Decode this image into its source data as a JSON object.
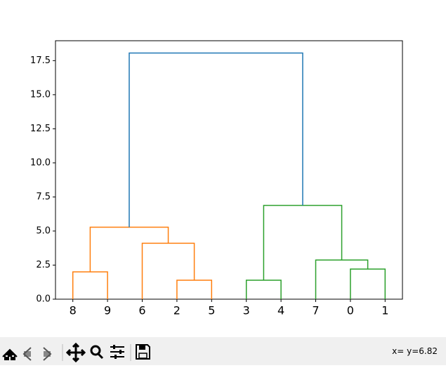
{
  "chart_data": {
    "type": "dendrogram",
    "categories": [
      "8",
      "9",
      "6",
      "2",
      "5",
      "3",
      "4",
      "7",
      "0",
      "1"
    ],
    "links": [
      {
        "x": [
          5,
          5,
          15,
          15
        ],
        "y": [
          0,
          2.0,
          2.0,
          0
        ],
        "color": "#ff7f0e"
      },
      {
        "x": [
          35,
          35,
          45,
          45
        ],
        "y": [
          0,
          1.39,
          1.39,
          0
        ],
        "color": "#ff7f0e"
      },
      {
        "x": [
          25,
          25,
          40,
          40
        ],
        "y": [
          0,
          4.1,
          4.1,
          1.39
        ],
        "color": "#ff7f0e"
      },
      {
        "x": [
          10,
          10,
          32.5,
          32.5
        ],
        "y": [
          2.0,
          5.28,
          5.28,
          4.1
        ],
        "color": "#ff7f0e"
      },
      {
        "x": [
          55,
          55,
          65,
          65
        ],
        "y": [
          0,
          1.39,
          1.39,
          0
        ],
        "color": "#2ca02c"
      },
      {
        "x": [
          85,
          85,
          95,
          95
        ],
        "y": [
          0,
          2.21,
          2.21,
          0
        ],
        "color": "#2ca02c"
      },
      {
        "x": [
          75,
          75,
          90,
          90
        ],
        "y": [
          0,
          2.87,
          2.87,
          2.21
        ],
        "color": "#2ca02c"
      },
      {
        "x": [
          60,
          60,
          82.5,
          82.5
        ],
        "y": [
          1.39,
          6.88,
          6.88,
          2.87
        ],
        "color": "#2ca02c"
      },
      {
        "x": [
          21.25,
          21.25,
          71.25,
          71.25
        ],
        "y": [
          5.28,
          18.06,
          18.06,
          6.88
        ],
        "color": "#1f77b4"
      }
    ],
    "xlim": [
      0,
      100
    ],
    "ylim": [
      0,
      18.96
    ],
    "yticks": [
      {
        "value": 0,
        "label": "0.0"
      },
      2.5,
      {
        "value": 5,
        "label": "5.0"
      },
      7.5,
      {
        "value": 10,
        "label": "10.0"
      },
      12.5,
      {
        "value": 15,
        "label": "15.0"
      },
      17.5
    ]
  },
  "toolbar": {
    "status": "x= y=6.82"
  }
}
